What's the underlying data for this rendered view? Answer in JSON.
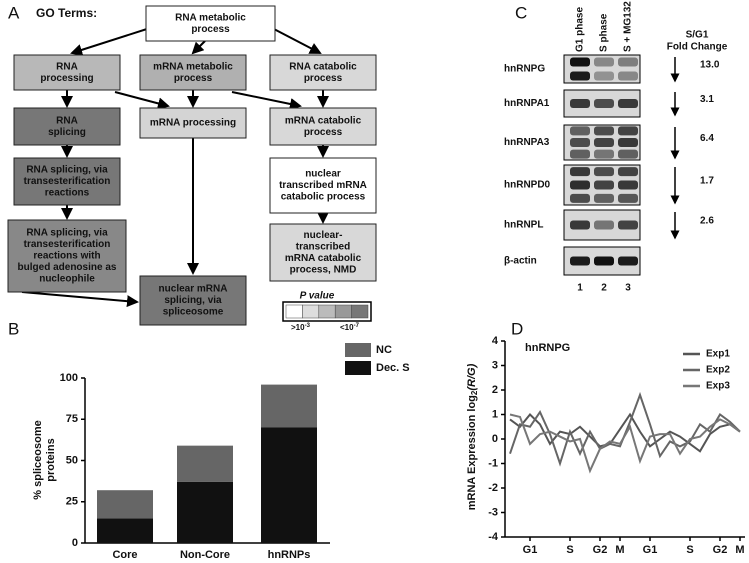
{
  "panel_a": {
    "letter": "A",
    "heading": "GO Terms:",
    "nodes": [
      {
        "lines": [
          "RNA metabolic",
          "process"
        ],
        "color": "#ffffff"
      },
      {
        "lines": [
          "RNA",
          "processing"
        ],
        "color": "#b8b8b8"
      },
      {
        "lines": [
          "mRNA metabolic",
          "process"
        ],
        "color": "#b0b0b0"
      },
      {
        "lines": [
          "RNA catabolic",
          "process"
        ],
        "color": "#d8d8d8"
      },
      {
        "lines": [
          "RNA",
          "splicing"
        ],
        "color": "#777777"
      },
      {
        "lines": [
          "mRNA processing"
        ],
        "color": "#d4d4d4"
      },
      {
        "lines": [
          "mRNA catabolic",
          "process"
        ],
        "color": "#d8d8d8"
      },
      {
        "lines": [
          "RNA splicing, via",
          "transesterification",
          "reactions"
        ],
        "color": "#777777"
      },
      {
        "lines": [
          "nuclear",
          "transcribed mRNA",
          "catabolic process"
        ],
        "color": "#ffffff"
      },
      {
        "lines": [
          "RNA splicing, via",
          "transesterification",
          "reactions with",
          "bulged adenosine as",
          "nucleophile"
        ],
        "color": "#888888"
      },
      {
        "lines": [
          "nuclear-",
          "transcribed",
          "mRNA catabolic",
          "process, NMD"
        ],
        "color": "#d8d8d8"
      },
      {
        "lines": [
          "nuclear mRNA",
          "splicing, via",
          "spliceosome"
        ],
        "color": "#777777"
      }
    ],
    "legend": {
      "title": "P value",
      "colors": [
        "#ffffff",
        "#dddddd",
        "#bbbbbb",
        "#999999",
        "#777777"
      ],
      "low": {
        "base": ">10",
        "exp": "-3"
      },
      "high": {
        "base": "<10",
        "exp": "-7"
      }
    }
  },
  "panel_c": {
    "letter": "C",
    "lanes": [
      "G1 phase",
      "S phase",
      "S + MG132"
    ],
    "lane_numbers": [
      "1",
      "2",
      "3"
    ],
    "header": [
      "S/G1",
      "Fold Change"
    ],
    "rows": [
      {
        "name": "hnRNPG",
        "fold": "13.0"
      },
      {
        "name": "hnRNPA1",
        "fold": "3.1"
      },
      {
        "name": "hnRNPA3",
        "fold": "6.4"
      },
      {
        "name": "hnRNPD0",
        "fold": "1.7"
      },
      {
        "name": "hnRNPL",
        "fold": "2.6"
      },
      {
        "name": "β-actin"
      }
    ]
  },
  "chart_data": [
    {
      "letter": "B",
      "type": "stacked_bar",
      "y_label": [
        "% spliceosome",
        "proteins"
      ],
      "categories": [
        "Core",
        "Non-Core",
        "hnRNPs"
      ],
      "series": [
        {
          "name": "Dec. S",
          "color": "#111111",
          "values": [
            15,
            37,
            70
          ]
        },
        {
          "name": "NC",
          "color": "#666666",
          "values": [
            17,
            22,
            26
          ]
        }
      ],
      "ylim": [
        0,
        100
      ],
      "yticks": [
        0,
        25,
        50,
        75,
        100
      ]
    },
    {
      "letter": "D",
      "type": "line",
      "title": "hnRNPG",
      "y_label": [
        "mRNA Expression log",
        "2",
        "(R/G)"
      ],
      "categories": [
        null,
        null,
        "G1",
        null,
        null,
        null,
        "S",
        null,
        null,
        "G2",
        null,
        "M",
        null,
        null,
        "G1",
        null,
        null,
        null,
        "S",
        null,
        null,
        "G2",
        null,
        "M"
      ],
      "series": [
        {
          "name": "Exp1",
          "color": "#555555",
          "values": [
            0.8,
            0.5,
            1.0,
            0.6,
            -0.2,
            0.3,
            0.2,
            0.5,
            0.1,
            -0.3,
            -0.2,
            0.4,
            1.0,
            0.3,
            -0.3,
            0.0,
            0.3,
            0.1,
            -0.2,
            -0.5,
            0.2,
            0.5,
            0.6,
            0.3
          ]
        },
        {
          "name": "Exp2",
          "color": "#666666",
          "values": [
            -0.6,
            0.6,
            0.5,
            1.1,
            0.2,
            -1.0,
            0.3,
            -0.6,
            0.3,
            -0.4,
            -0.2,
            -0.3,
            0.7,
            1.8,
            0.6,
            -0.7,
            -0.1,
            -0.3,
            -0.1,
            0.6,
            0.3,
            1.0,
            0.7,
            0.3
          ]
        },
        {
          "name": "Exp3",
          "color": "#777777",
          "values": [
            1.0,
            0.9,
            -0.2,
            0.2,
            0.3,
            0.1,
            -0.1,
            0.0,
            -1.3,
            -0.4,
            -0.1,
            -0.2,
            0.5,
            -0.9,
            0.1,
            0.2,
            0.2,
            -0.6,
            0.0,
            0.1,
            0.5,
            0.8,
            0.6,
            0.3
          ]
        }
      ],
      "ylim": [
        -4,
        4
      ],
      "yticks": [
        -4,
        -3,
        -2,
        -1,
        0,
        1,
        2,
        3,
        4
      ]
    }
  ]
}
